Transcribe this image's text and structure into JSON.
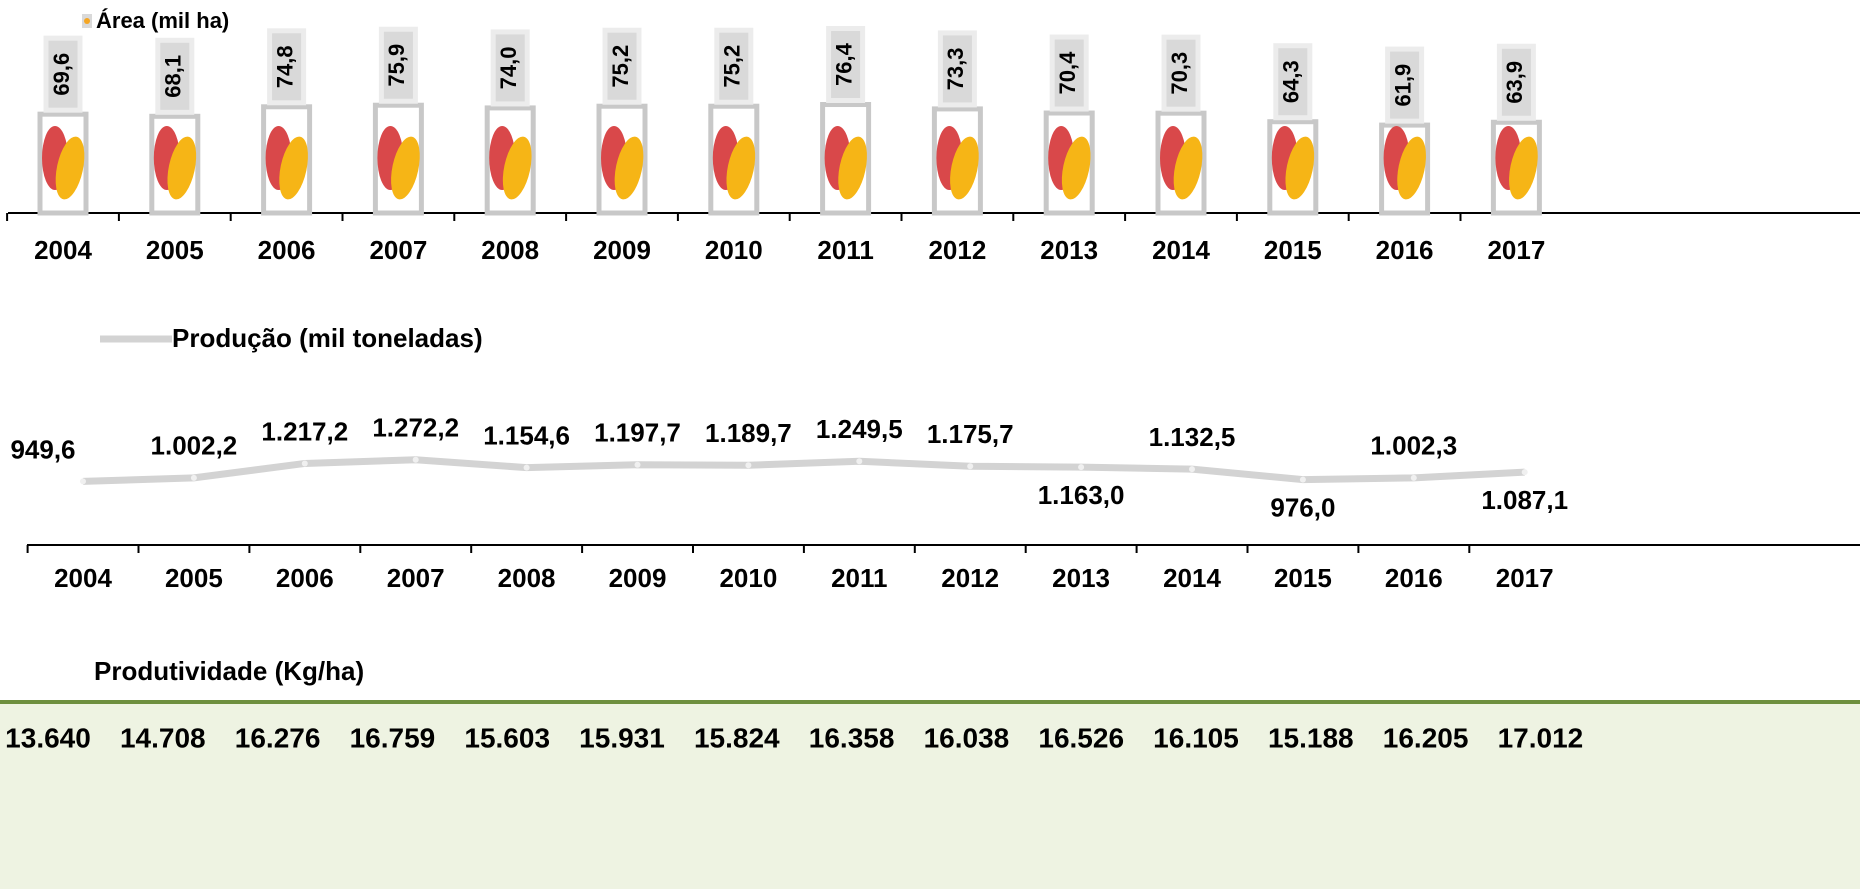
{
  "chart_data": [
    {
      "type": "bar",
      "categories": [
        "2004",
        "2005",
        "2006",
        "2007",
        "2008",
        "2009",
        "2010",
        "2011",
        "2012",
        "2013",
        "2014",
        "2015",
        "2016",
        "2017"
      ],
      "series": [
        {
          "name": "Área (mil ha)",
          "color": "#c8c8c8",
          "values": [
            69.6,
            68.1,
            74.8,
            75.9,
            74.0,
            75.2,
            75.2,
            76.4,
            73.3,
            70.4,
            70.3,
            64.3,
            61.9,
            63.9
          ],
          "value_labels": [
            "69,6",
            "68,1",
            "74,8",
            "75,9",
            "74,0",
            "75,2",
            "75,2",
            "76,4",
            "73,3",
            "70,4",
            "70,3",
            "64,3",
            "61,9",
            "63,9"
          ]
        }
      ],
      "ylim": [
        0,
        150
      ]
    },
    {
      "type": "line",
      "categories": [
        "2004",
        "2005",
        "2006",
        "2007",
        "2008",
        "2009",
        "2010",
        "2011",
        "2012",
        "2013",
        "2014",
        "2015",
        "2016",
        "2017"
      ],
      "series": [
        {
          "name": "Produção (mil toneladas)",
          "color": "#d3d3d3",
          "values": [
            949.6,
            1002.2,
            1217.2,
            1272.2,
            1154.6,
            1197.7,
            1189.7,
            1249.5,
            1175.7,
            1163.0,
            1132.5,
            976.0,
            1002.3,
            1087.1
          ],
          "value_labels": [
            "949,6",
            "1.002,2",
            "1.217,2",
            "1.272,2",
            "1.154,6",
            "1.197,7",
            "1.189,7",
            "1.249,5",
            "1.175,7",
            "1.163,0",
            "1.132,5",
            "976,0",
            "1.002,3",
            "1.087,1"
          ]
        }
      ],
      "ylim": [
        0,
        8000
      ]
    },
    {
      "type": "table",
      "title": "Produtividade (Kg/ha)",
      "values": [
        13640,
        14708,
        16276,
        16759,
        15603,
        15931,
        15824,
        16358,
        16038,
        16526,
        16105,
        15188,
        16205,
        17012
      ],
      "value_labels": [
        "13.640",
        "14.708",
        "16.276",
        "16.759",
        "15.603",
        "15.931",
        "15.824",
        "16.358",
        "16.038",
        "16.526",
        "16.105",
        "15.188",
        "16.205",
        "17.012"
      ]
    }
  ]
}
